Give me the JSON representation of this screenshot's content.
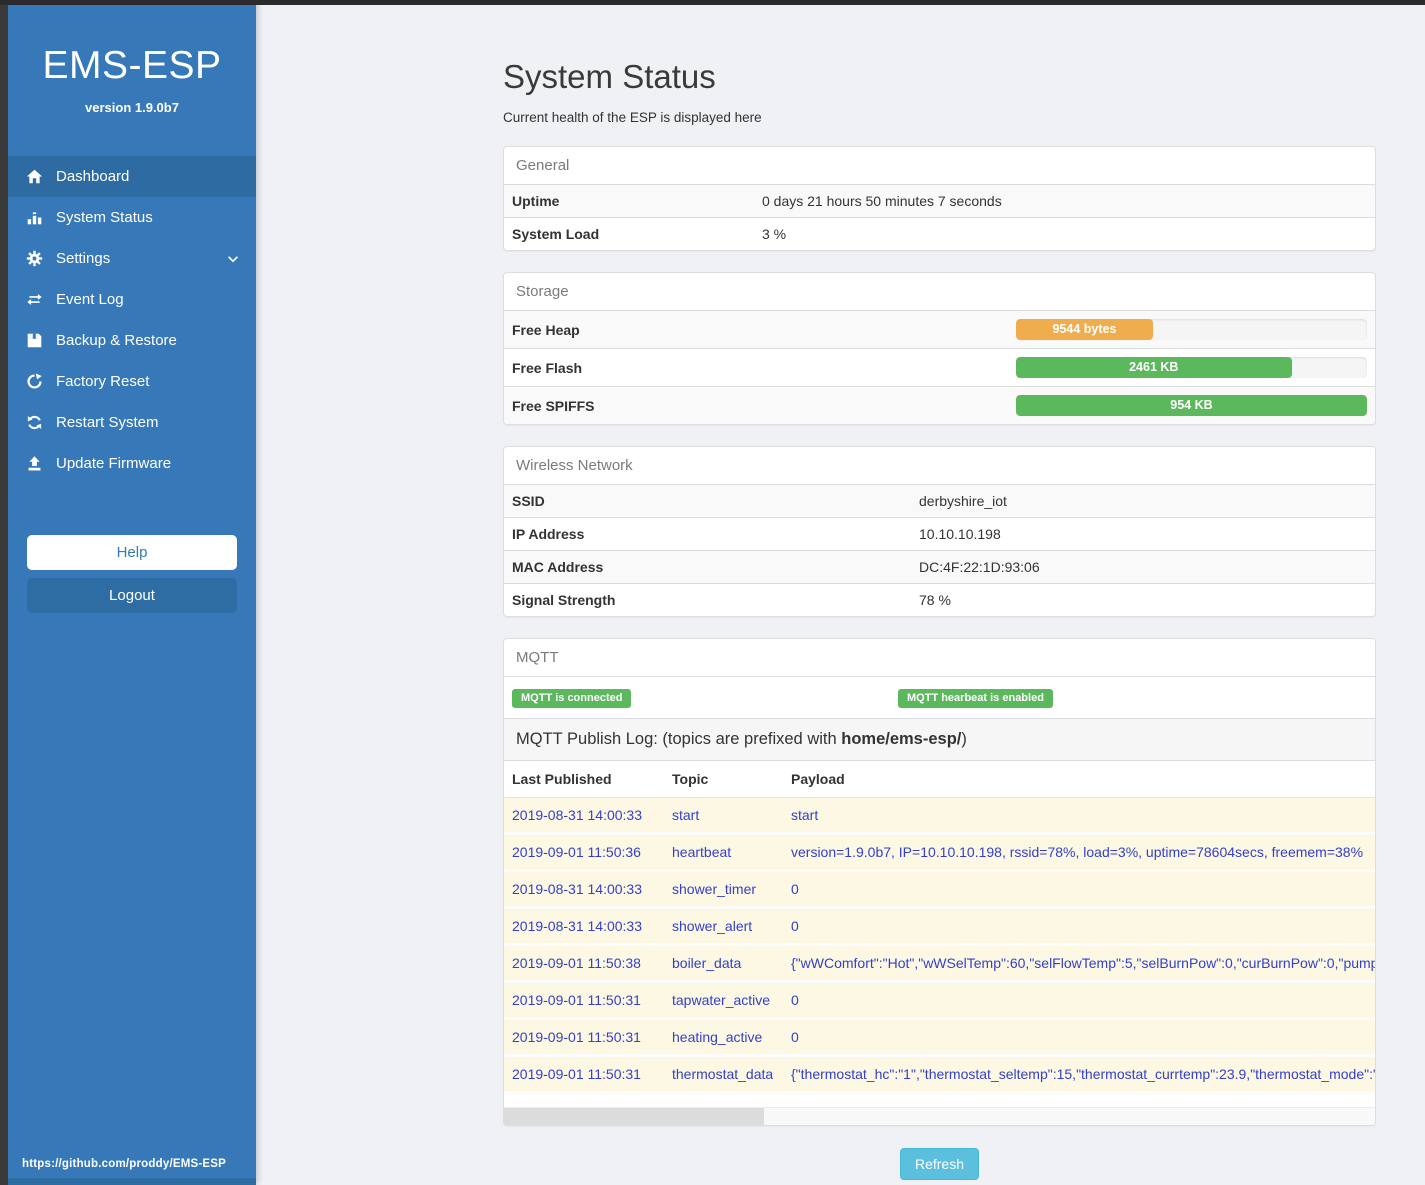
{
  "sidebar": {
    "title": "EMS-ESP",
    "version": "version 1.9.0b7",
    "items": [
      {
        "label": "Dashboard",
        "icon": "home-icon",
        "active": true
      },
      {
        "label": "System Status",
        "icon": "chart-icon",
        "active": false
      },
      {
        "label": "Settings",
        "icon": "gear-icon",
        "active": false,
        "chevron": true
      },
      {
        "label": "Event Log",
        "icon": "exchange-icon",
        "active": false
      },
      {
        "label": "Backup & Restore",
        "icon": "save-icon",
        "active": false
      },
      {
        "label": "Factory Reset",
        "icon": "redo-icon",
        "active": false
      },
      {
        "label": "Restart System",
        "icon": "sync-icon",
        "active": false
      },
      {
        "label": "Update Firmware",
        "icon": "upload-icon",
        "active": false
      }
    ],
    "help_label": "Help",
    "logout_label": "Logout",
    "footer_link": "https://github.com/proddy/EMS-ESP"
  },
  "header": {
    "title": "System Status",
    "subtitle": "Current health of the ESP is displayed here"
  },
  "panels": {
    "general": {
      "title": "General",
      "rows": [
        {
          "label": "Uptime",
          "value": "0 days 21 hours 50 minutes 7 seconds"
        },
        {
          "label": "System Load",
          "value": "3 %"
        }
      ]
    },
    "storage": {
      "title": "Storage",
      "rows": [
        {
          "label": "Free Heap",
          "bar_label": "9544 bytes",
          "percent": 39,
          "color": "#f0ad4e"
        },
        {
          "label": "Free Flash",
          "bar_label": "2461 KB",
          "percent": 78.5,
          "color": "#5cb85c"
        },
        {
          "label": "Free SPIFFS",
          "bar_label": "954 KB",
          "percent": 100,
          "color": "#5cb85c"
        }
      ]
    },
    "wireless": {
      "title": "Wireless Network",
      "rows": [
        {
          "label": "SSID",
          "value": "derbyshire_iot"
        },
        {
          "label": "IP Address",
          "value": "10.10.10.198"
        },
        {
          "label": "MAC Address",
          "value": "DC:4F:22:1D:93:06"
        },
        {
          "label": "Signal Strength",
          "value": "78 %"
        }
      ]
    },
    "mqtt": {
      "title": "MQTT",
      "badges": {
        "connected": "MQTT is connected",
        "heartbeat": "MQTT hearbeat is enabled"
      },
      "publish_log": {
        "prefix": "MQTT Publish Log: (topics are prefixed with ",
        "bold": "home/ems-esp/",
        "suffix": ")"
      },
      "table": {
        "headers": [
          "Last Published",
          "Topic",
          "Payload"
        ],
        "rows": [
          [
            "2019-08-31 14:00:33",
            "start",
            "start"
          ],
          [
            "2019-09-01 11:50:36",
            "heartbeat",
            "version=1.9.0b7, IP=10.10.10.198, rssid=78%, load=3%, uptime=78604secs, freemem=38%"
          ],
          [
            "2019-08-31 14:00:33",
            "shower_timer",
            "0"
          ],
          [
            "2019-08-31 14:00:33",
            "shower_alert",
            "0"
          ],
          [
            "2019-09-01 11:50:38",
            "boiler_data",
            "{\"wWComfort\":\"Hot\",\"wWSelTemp\":60,\"selFlowTemp\":5,\"selBurnPow\":0,\"curBurnPow\":0,\"pump"
          ],
          [
            "2019-09-01 11:50:31",
            "tapwater_active",
            "0"
          ],
          [
            "2019-09-01 11:50:31",
            "heating_active",
            "0"
          ],
          [
            "2019-09-01 11:50:31",
            "thermostat_data",
            "{\"thermostat_hc\":\"1\",\"thermostat_seltemp\":15,\"thermostat_currtemp\":23.9,\"thermostat_mode\":\""
          ]
        ]
      }
    }
  },
  "refresh_label": "Refresh",
  "colors": {
    "sidebar_blue": "#3779b8",
    "sidebar_active_blue": "#2e6ba3",
    "badge_green": "#5cb85c",
    "bar_orange": "#f0ad4e",
    "bar_green": "#5cb85c",
    "log_text_blue": "#3440cc",
    "refresh_blue": "#5bc0de",
    "page_background": "#eff1f5"
  }
}
